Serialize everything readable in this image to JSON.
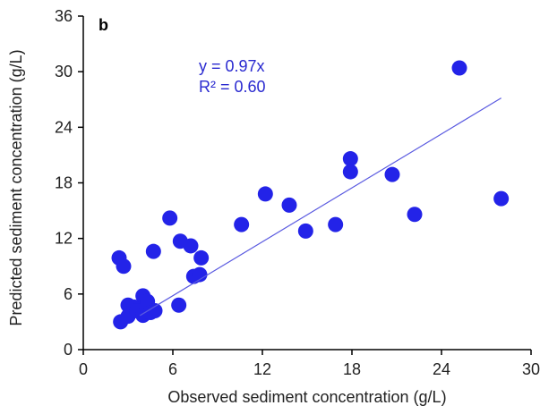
{
  "chart_data": {
    "type": "scatter",
    "panel_label": "b",
    "xlabel": "Observed sediment concentration (g/L)",
    "ylabel": "Predicted sediment concentration (g/L)",
    "xlim": [
      0,
      30
    ],
    "ylim": [
      0,
      36
    ],
    "xticks": [
      0,
      6,
      12,
      18,
      24,
      30
    ],
    "yticks": [
      0,
      6,
      12,
      18,
      24,
      30,
      36
    ],
    "grid": false,
    "colors": {
      "points": "#2323e8",
      "fit_line": "#5a5ae0",
      "annotation": "#2a2ad0"
    },
    "annotations": {
      "equation": "y = 0.97x",
      "r2": "R² = 0.60"
    },
    "fit_line": {
      "slope": 0.97,
      "x_range": [
        3.8,
        28.0
      ]
    },
    "points": [
      {
        "x": 2.4,
        "y": 9.9
      },
      {
        "x": 2.7,
        "y": 9.0
      },
      {
        "x": 2.5,
        "y": 3.0
      },
      {
        "x": 3.0,
        "y": 4.8
      },
      {
        "x": 3.0,
        "y": 3.6
      },
      {
        "x": 3.4,
        "y": 4.6
      },
      {
        "x": 3.6,
        "y": 4.2
      },
      {
        "x": 4.0,
        "y": 5.8
      },
      {
        "x": 4.0,
        "y": 3.7
      },
      {
        "x": 4.3,
        "y": 5.2
      },
      {
        "x": 4.5,
        "y": 4.0
      },
      {
        "x": 4.7,
        "y": 10.6
      },
      {
        "x": 4.8,
        "y": 4.2
      },
      {
        "x": 5.8,
        "y": 14.2
      },
      {
        "x": 6.4,
        "y": 4.8
      },
      {
        "x": 6.5,
        "y": 11.7
      },
      {
        "x": 7.2,
        "y": 11.2
      },
      {
        "x": 7.4,
        "y": 7.9
      },
      {
        "x": 7.8,
        "y": 8.1
      },
      {
        "x": 7.9,
        "y": 9.9
      },
      {
        "x": 10.6,
        "y": 13.5
      },
      {
        "x": 12.2,
        "y": 16.8
      },
      {
        "x": 13.8,
        "y": 15.6
      },
      {
        "x": 14.9,
        "y": 12.8
      },
      {
        "x": 16.9,
        "y": 13.5
      },
      {
        "x": 17.9,
        "y": 20.6
      },
      {
        "x": 17.9,
        "y": 19.2
      },
      {
        "x": 20.7,
        "y": 18.9
      },
      {
        "x": 22.2,
        "y": 14.6
      },
      {
        "x": 25.2,
        "y": 30.4
      },
      {
        "x": 28.0,
        "y": 16.3
      }
    ]
  }
}
